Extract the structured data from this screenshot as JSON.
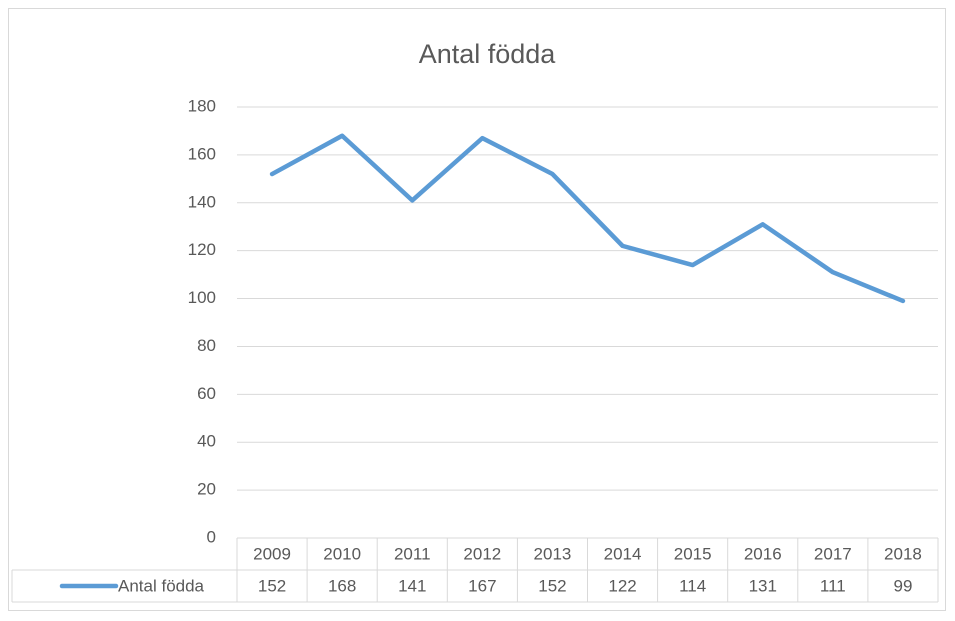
{
  "chart_data": {
    "type": "line",
    "title": "Antal födda",
    "categories": [
      "2009",
      "2010",
      "2011",
      "2012",
      "2013",
      "2014",
      "2015",
      "2016",
      "2017",
      "2018"
    ],
    "series": [
      {
        "name": "Antal födda",
        "color": "#5b9bd5",
        "values": [
          152,
          168,
          141,
          167,
          152,
          122,
          114,
          131,
          111,
          99
        ]
      }
    ],
    "ylim": [
      0,
      180
    ],
    "yticks": [
      0,
      20,
      40,
      60,
      80,
      100,
      120,
      140,
      160,
      180
    ],
    "grid": true,
    "data_table": true
  }
}
